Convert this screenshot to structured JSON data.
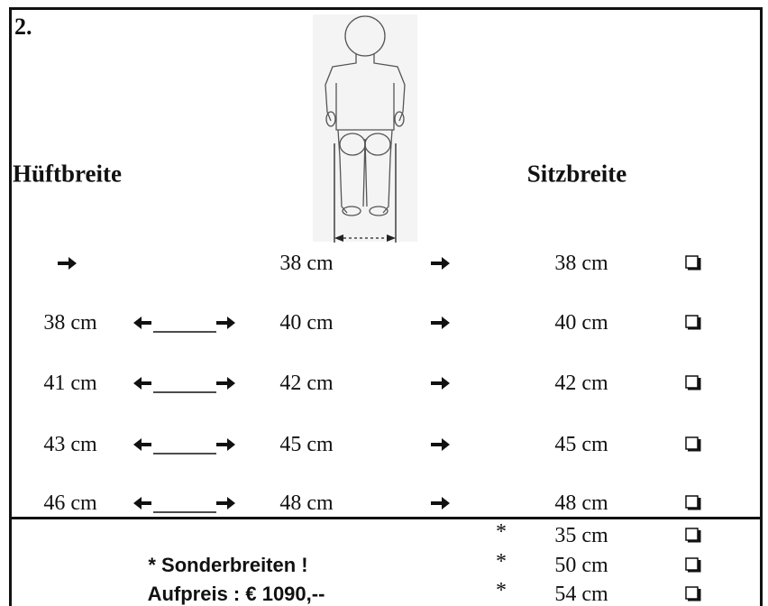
{
  "section_number": "2.",
  "headers": {
    "hip": "Hüftbreite",
    "seat": "Sitzbreite"
  },
  "rows": [
    {
      "range_width": "38 cm",
      "seat_width": "38 cm"
    },
    {
      "hip": "38 cm",
      "range_width": "40 cm",
      "seat_width": "40 cm"
    },
    {
      "hip": "41 cm",
      "range_width": "42 cm",
      "seat_width": "42 cm"
    },
    {
      "hip": "43 cm",
      "range_width": "45 cm",
      "seat_width": "45 cm"
    },
    {
      "hip": "46 cm",
      "range_width": "48 cm",
      "seat_width": "48 cm"
    }
  ],
  "special": {
    "note": "* Sonderbreiten !",
    "price": "Aufpreis : € 1090,--",
    "options": [
      {
        "marker": "*",
        "width": "35 cm"
      },
      {
        "marker": "*",
        "width": "50 cm"
      },
      {
        "marker": "*",
        "width": "54 cm"
      }
    ]
  }
}
